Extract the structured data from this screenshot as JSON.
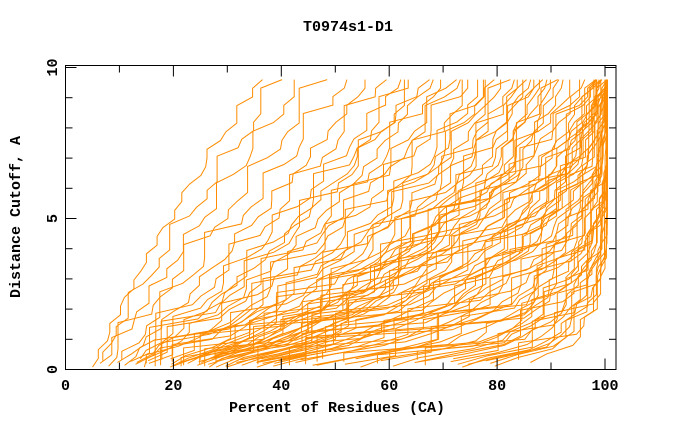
{
  "figure": {
    "background": "#FFFFFF",
    "text_color": "#000000",
    "axis_color": "#000000"
  },
  "chart_data": {
    "type": "line",
    "title": "T0974s1-D1",
    "xlabel": "Percent of Residues (CA)",
    "ylabel": "Distance Cutoff, A",
    "xlim": [
      0,
      100
    ],
    "ylim": [
      0,
      10
    ],
    "x_major_ticks": [
      0,
      20,
      40,
      60,
      80,
      100
    ],
    "x_minor_ticks": [
      10,
      30,
      50,
      70,
      90
    ],
    "y_major_ticks": [
      0,
      5,
      10
    ],
    "y_minor_ticks": [
      1,
      2,
      3,
      4,
      6,
      7,
      8,
      9
    ],
    "grid": false,
    "legend": "none",
    "curve_color": "#FF8C00",
    "curve_count": 90,
    "anchor_cutoffs": [
      0.2,
      0.8,
      2,
      4,
      6.5,
      9.5
    ],
    "curves": [
      [
        5,
        7,
        10,
        16,
        25,
        36
      ],
      [
        6,
        8,
        12,
        19,
        29,
        40
      ],
      [
        7,
        10,
        14,
        22,
        32,
        44
      ],
      [
        8,
        11,
        16,
        25,
        36,
        48
      ],
      [
        9,
        13,
        18,
        28,
        40,
        52
      ],
      [
        10,
        14,
        21,
        31,
        43,
        56
      ],
      [
        11,
        15,
        23,
        34,
        46,
        59
      ],
      [
        12,
        17,
        25,
        36,
        49,
        62
      ],
      [
        12,
        18,
        27,
        38,
        51,
        64
      ],
      [
        13,
        19,
        28,
        40,
        53,
        66
      ],
      [
        14,
        20,
        30,
        42,
        55,
        68
      ],
      [
        15,
        21,
        31,
        44,
        57,
        70
      ],
      [
        15,
        22,
        33,
        45,
        59,
        72
      ],
      [
        16,
        23,
        34,
        47,
        60,
        73
      ],
      [
        17,
        24,
        35,
        48,
        62,
        75
      ],
      [
        13,
        18,
        26,
        39,
        52,
        67
      ],
      [
        17,
        25,
        36,
        50,
        64,
        76
      ],
      [
        18,
        26,
        38,
        52,
        66,
        78
      ],
      [
        19,
        27,
        39,
        53,
        67,
        79
      ],
      [
        19,
        28,
        40,
        55,
        69,
        80
      ],
      [
        20,
        29,
        42,
        56,
        70,
        81
      ],
      [
        21,
        30,
        43,
        58,
        72,
        82
      ],
      [
        22,
        31,
        44,
        59,
        73,
        83
      ],
      [
        22,
        32,
        46,
        60,
        74,
        84
      ],
      [
        23,
        33,
        47,
        62,
        76,
        85
      ],
      [
        24,
        34,
        48,
        63,
        77,
        86
      ],
      [
        25,
        35,
        50,
        64,
        78,
        87
      ],
      [
        25,
        36,
        51,
        66,
        80,
        88
      ],
      [
        26,
        37,
        52,
        67,
        81,
        89
      ],
      [
        27,
        38,
        53,
        68,
        82,
        90
      ],
      [
        28,
        39,
        55,
        70,
        84,
        91
      ],
      [
        28,
        40,
        56,
        71,
        85,
        92
      ],
      [
        16,
        24,
        37,
        54,
        68,
        79
      ],
      [
        20,
        31,
        45,
        61,
        75,
        86
      ],
      [
        24,
        36,
        52,
        68,
        83,
        91
      ],
      [
        21,
        33,
        48,
        64,
        79,
        88
      ],
      [
        22,
        34,
        48,
        64,
        82,
        95
      ],
      [
        23,
        35,
        50,
        66,
        84,
        96
      ],
      [
        24,
        36,
        51,
        68,
        85,
        97
      ],
      [
        25,
        38,
        53,
        70,
        87,
        98
      ],
      [
        26,
        39,
        54,
        71,
        88,
        98
      ],
      [
        27,
        40,
        56,
        73,
        89,
        99
      ],
      [
        28,
        42,
        58,
        74,
        90,
        99
      ],
      [
        29,
        43,
        59,
        76,
        91,
        100
      ],
      [
        30,
        44,
        60,
        77,
        92,
        100
      ],
      [
        31,
        46,
        62,
        79,
        93,
        100
      ],
      [
        32,
        47,
        63,
        80,
        94,
        100
      ],
      [
        33,
        48,
        65,
        81,
        94,
        100
      ],
      [
        34,
        50,
        66,
        83,
        95,
        100
      ],
      [
        35,
        51,
        68,
        84,
        95,
        100
      ],
      [
        36,
        52,
        69,
        85,
        96,
        100
      ],
      [
        37,
        54,
        71,
        86,
        96,
        100
      ],
      [
        38,
        55,
        72,
        87,
        97,
        100
      ],
      [
        39,
        56,
        73,
        88,
        97,
        100
      ],
      [
        40,
        58,
        75,
        89,
        98,
        100
      ],
      [
        41,
        59,
        76,
        90,
        98,
        100
      ],
      [
        42,
        60,
        77,
        91,
        98,
        100
      ],
      [
        43,
        62,
        79,
        92,
        99,
        100
      ],
      [
        44,
        63,
        80,
        92,
        99,
        100
      ],
      [
        45,
        64,
        81,
        93,
        99,
        100
      ],
      [
        30,
        45,
        61,
        78,
        92,
        99
      ],
      [
        33,
        49,
        66,
        82,
        94,
        99
      ],
      [
        37,
        53,
        70,
        85,
        95,
        99
      ],
      [
        26,
        40,
        57,
        74,
        90,
        98
      ],
      [
        29,
        44,
        61,
        78,
        93,
        99
      ],
      [
        35,
        52,
        70,
        86,
        96,
        100
      ],
      [
        46,
        66,
        82,
        93,
        98,
        100
      ],
      [
        48,
        68,
        83,
        94,
        99,
        100
      ],
      [
        50,
        70,
        85,
        95,
        99,
        100
      ],
      [
        52,
        72,
        86,
        95,
        99,
        100
      ],
      [
        54,
        74,
        87,
        96,
        99,
        100
      ],
      [
        56,
        75,
        88,
        96,
        100,
        100
      ],
      [
        58,
        77,
        89,
        97,
        100,
        100
      ],
      [
        60,
        79,
        90,
        97,
        100,
        100
      ],
      [
        62,
        80,
        91,
        98,
        100,
        100
      ],
      [
        64,
        82,
        92,
        98,
        100,
        100
      ],
      [
        66,
        83,
        93,
        98,
        100,
        100
      ],
      [
        68,
        85,
        94,
        99,
        100,
        100
      ],
      [
        70,
        86,
        94,
        99,
        100,
        100
      ],
      [
        72,
        88,
        95,
        99,
        100,
        100
      ],
      [
        74,
        89,
        96,
        99,
        100,
        100
      ],
      [
        76,
        90,
        96,
        100,
        100,
        100
      ],
      [
        78,
        91,
        97,
        100,
        100,
        100
      ],
      [
        80,
        92,
        97,
        100,
        100,
        100
      ],
      [
        82,
        93,
        98,
        100,
        100,
        100
      ],
      [
        85,
        94,
        98,
        100,
        100,
        100
      ],
      [
        47,
        67,
        84,
        95,
        99,
        100
      ],
      [
        55,
        76,
        90,
        97,
        100,
        100
      ],
      [
        63,
        81,
        92,
        98,
        100,
        100
      ],
      [
        75,
        90,
        97,
        100,
        100,
        100
      ]
    ]
  }
}
